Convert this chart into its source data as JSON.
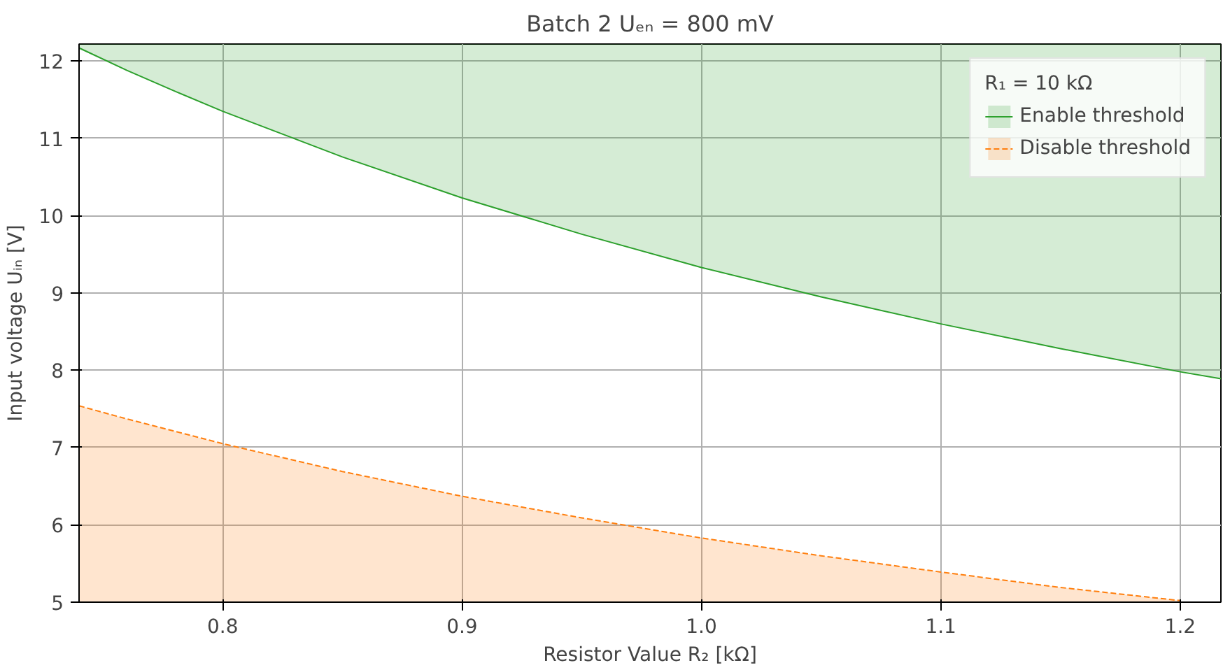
{
  "chart_data": {
    "type": "area",
    "title": "Batch 2 Uₑₙ = 800 mV",
    "xlabel": "Resistor Value R₂ [kΩ]",
    "ylabel": "Input voltage Uᵢₙ [V]",
    "legend_title": "R₁ = 10 kΩ",
    "series": [
      {
        "name": "Enable threshold",
        "type": "line",
        "color": "#2ca02c",
        "line_style": "solid",
        "x": [
          0.74,
          0.76,
          0.78,
          0.8,
          0.85,
          0.9,
          0.95,
          1.0,
          1.05,
          1.1,
          1.15,
          1.2,
          1.217
        ],
        "values": [
          12.17,
          11.88,
          11.61,
          11.35,
          10.76,
          10.23,
          9.76,
          9.33,
          8.95,
          8.6,
          8.28,
          7.98,
          7.89
        ],
        "lower": [
          12.17,
          11.88,
          11.61,
          11.35,
          10.76,
          10.23,
          9.76,
          9.33,
          8.95,
          8.6,
          8.28,
          7.98,
          7.89
        ],
        "upper": [
          12.22,
          12.22,
          12.22,
          12.22,
          12.22,
          12.22,
          12.22,
          12.22,
          12.22,
          12.22,
          12.22,
          12.22,
          12.22
        ]
      },
      {
        "name": "Disable threshold",
        "color": "#ff7f0e",
        "line_style": "dashed",
        "x": [
          0.74,
          0.76,
          0.78,
          0.8,
          0.85,
          0.9,
          0.95,
          1.0,
          1.05,
          1.1,
          1.15,
          1.2
        ],
        "values": [
          7.54,
          7.37,
          7.21,
          7.05,
          6.69,
          6.37,
          6.09,
          5.83,
          5.6,
          5.39,
          5.19,
          5.02
        ]
      }
    ],
    "xlim": [
      0.74,
      1.217
    ],
    "ylim": [
      5,
      12.22
    ],
    "xticks": [
      0.8,
      0.9,
      {
        "value": 1.0,
        "label": "1.0"
      },
      1.1,
      1.2
    ],
    "yticks": [
      5,
      6,
      7,
      8,
      9,
      10,
      11,
      12
    ],
    "grid": true,
    "legend": "top right"
  }
}
